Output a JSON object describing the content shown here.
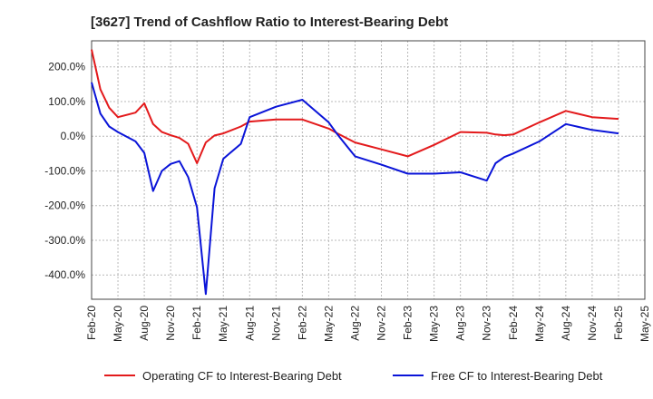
{
  "chart_data": {
    "type": "line",
    "title": "[3627]  Trend of Cashflow Ratio to Interest-Bearing Debt",
    "xlabel": "",
    "ylabel": "",
    "x_ticks": [
      "Feb-20",
      "May-20",
      "Aug-20",
      "Nov-20",
      "Feb-21",
      "May-21",
      "Aug-21",
      "Nov-21",
      "Feb-22",
      "May-22",
      "Aug-22",
      "Nov-22",
      "Feb-23",
      "May-23",
      "Aug-23",
      "Nov-23",
      "Feb-24",
      "May-24",
      "Aug-24",
      "Nov-24",
      "Feb-25",
      "May-25"
    ],
    "y_ticks": [
      200,
      100,
      0,
      -100,
      -200,
      -300,
      -400
    ],
    "y_tick_labels": [
      "200.0%",
      "100.0%",
      "0.0%",
      "-100.0%",
      "-200.0%",
      "-300.0%",
      "-400.0%"
    ],
    "ylim": [
      -470,
      275
    ],
    "grid": true,
    "legend_position": "bottom",
    "x": [
      "Feb-20",
      "Mar-20",
      "Apr-20",
      "May-20",
      "Jul-20",
      "Aug-20",
      "Sep-20",
      "Oct-20",
      "Nov-20",
      "Dec-20",
      "Jan-21",
      "Feb-21",
      "Mar-21",
      "Apr-21",
      "May-21",
      "Jul-21",
      "Aug-21",
      "Nov-21",
      "Feb-22",
      "May-22",
      "Jun-22",
      "Aug-22",
      "Nov-22",
      "Feb-23",
      "May-23",
      "Aug-23",
      "Nov-23",
      "Dec-23",
      "Jan-24",
      "Feb-24",
      "May-24",
      "Aug-24",
      "Nov-24",
      "Feb-25"
    ],
    "series": [
      {
        "name": "Operating CF to Interest-Bearing Debt",
        "color": "#e31a1c",
        "values": [
          250,
          135,
          82,
          55,
          68,
          95,
          35,
          12,
          3,
          -5,
          -22,
          -78,
          -18,
          2,
          8,
          28,
          42,
          48,
          48,
          22,
          8,
          -18,
          -38,
          -58,
          -25,
          12,
          10,
          5,
          3,
          5,
          40,
          73,
          55,
          50
        ]
      },
      {
        "name": "Free CF to Interest-Bearing Debt",
        "color": "#0a14d8",
        "values": [
          155,
          65,
          28,
          12,
          -15,
          -48,
          -158,
          -100,
          -80,
          -72,
          -118,
          -205,
          -455,
          -150,
          -65,
          -22,
          55,
          85,
          105,
          40,
          5,
          -58,
          -82,
          -108,
          -108,
          -104,
          -128,
          -78,
          -60,
          -50,
          -15,
          35,
          18,
          8
        ]
      }
    ]
  }
}
